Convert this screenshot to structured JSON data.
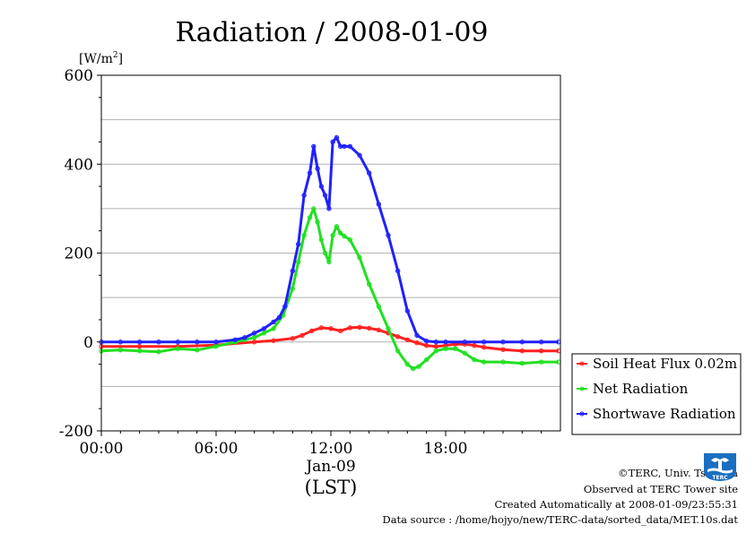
{
  "colors": {
    "soil": "#ff2020",
    "net": "#20e020",
    "short": "#2020ff",
    "grid": "#b0b0b0",
    "logo": "#1a6fc0"
  },
  "chart_data": {
    "type": "line",
    "title": "Radiation / 2008-01-09",
    "ylabel_unit": "[W/m",
    "ylabel_sup": "2",
    "ylabel_close": "]",
    "xlabel": "(LST)",
    "x_date_label": "Jan-09",
    "ylim": [
      -200,
      600
    ],
    "y_ticks": [
      -200,
      0,
      200,
      400,
      600
    ],
    "y_tick_labels": [
      "-200",
      "0",
      "200",
      "400",
      "600"
    ],
    "xlim": [
      0,
      24
    ],
    "x_ticks": [
      0,
      6,
      12,
      18
    ],
    "x_tick_labels": [
      "00:00",
      "06:00",
      "12:00",
      "18:00"
    ],
    "grid": true,
    "legend_position": "right",
    "series": [
      {
        "name": "Soil Heat Flux 0.02m",
        "key": "soil",
        "x": [
          0,
          2,
          4,
          6,
          8,
          9,
          10,
          10.5,
          11,
          11.5,
          12,
          12.5,
          13,
          13.5,
          14,
          14.5,
          15,
          15.5,
          16,
          16.5,
          17,
          17.5,
          18,
          18.5,
          19,
          19.5,
          20,
          21,
          22,
          23,
          23.9
        ],
        "y": [
          -10,
          -10,
          -10,
          -7,
          0,
          3,
          8,
          15,
          25,
          32,
          30,
          25,
          32,
          33,
          31,
          27,
          20,
          12,
          5,
          -2,
          -8,
          -10,
          -8,
          -5,
          -5,
          -8,
          -12,
          -17,
          -20,
          -20,
          -20
        ]
      },
      {
        "name": "Net Radiation",
        "key": "net",
        "x": [
          0,
          1,
          2,
          3,
          4,
          5,
          6,
          7,
          7.5,
          8,
          8.5,
          9,
          9.5,
          10,
          10.3,
          10.6,
          10.9,
          11.1,
          11.3,
          11.5,
          11.7,
          11.9,
          12.1,
          12.3,
          12.5,
          12.7,
          13,
          13.5,
          14,
          14.5,
          15,
          15.5,
          16,
          16.3,
          16.6,
          17,
          17.5,
          18,
          18.5,
          19,
          19.5,
          20,
          21,
          22,
          23,
          23.9
        ],
        "y": [
          -20,
          -18,
          -20,
          -22,
          -15,
          -18,
          -10,
          0,
          5,
          10,
          20,
          30,
          60,
          120,
          180,
          240,
          280,
          300,
          270,
          230,
          200,
          180,
          240,
          260,
          245,
          238,
          230,
          190,
          130,
          80,
          30,
          -20,
          -50,
          -60,
          -55,
          -40,
          -20,
          -15,
          -15,
          -25,
          -40,
          -45,
          -45,
          -48,
          -45,
          -45
        ]
      },
      {
        "name": "Shortwave Radiation",
        "key": "short",
        "x": [
          0,
          1,
          2,
          3,
          4,
          5,
          6,
          7,
          7.5,
          8,
          8.5,
          9,
          9.3,
          9.6,
          10,
          10.3,
          10.6,
          10.9,
          11.1,
          11.3,
          11.5,
          11.7,
          11.9,
          12.1,
          12.3,
          12.5,
          12.7,
          13,
          13.5,
          14,
          14.5,
          15,
          15.5,
          16,
          16.5,
          17,
          17.5,
          18,
          19,
          20,
          21,
          22,
          23,
          23.9
        ],
        "y": [
          0,
          0,
          0,
          0,
          0,
          0,
          0,
          5,
          10,
          20,
          30,
          45,
          55,
          80,
          160,
          220,
          330,
          380,
          440,
          390,
          350,
          330,
          300,
          450,
          460,
          440,
          440,
          440,
          420,
          380,
          310,
          240,
          160,
          70,
          15,
          2,
          0,
          0,
          0,
          0,
          0,
          0,
          0,
          0
        ]
      }
    ]
  },
  "credits": {
    "copyright": "©TERC, Univ. Tsukuba",
    "observed": "Observed at TERC Tower site",
    "created": "Created Automatically at 2008-01-09/23:55:31",
    "source": "Data source : /home/hojyo/new/TERC-data/sorted_data/MET.10s.dat",
    "logo_text": "TERC"
  }
}
